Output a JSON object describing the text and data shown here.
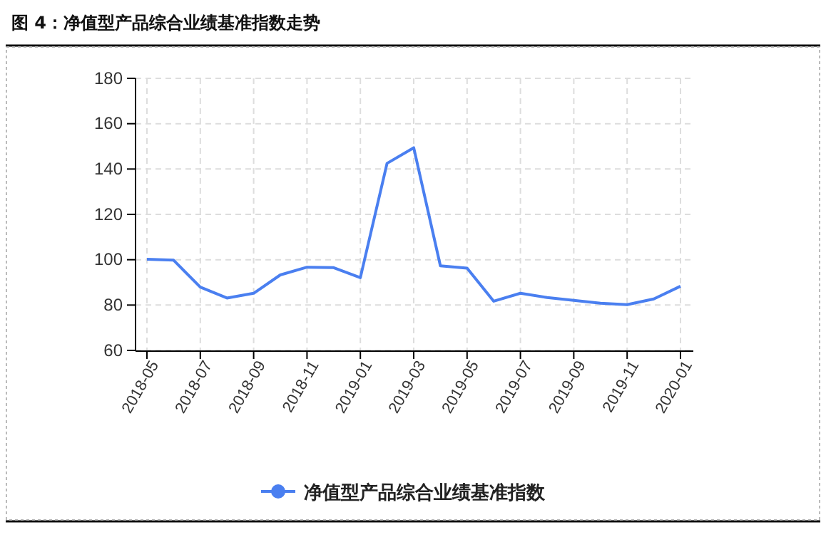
{
  "chart_data": {
    "type": "line",
    "title": "图 4：净值型产品综合业绩基准指数走势",
    "categories": [
      "2018-05",
      null,
      "2018-07",
      null,
      "2018-09",
      null,
      "2018-11",
      null,
      "2019-01",
      null,
      "2019-03",
      null,
      "2019-05",
      null,
      "2019-07",
      null,
      "2019-09",
      null,
      "2019-11",
      null,
      "2020-01"
    ],
    "series": [
      {
        "name": "净值型产品综合业绩基准指数",
        "color": "#4a7ff0",
        "values": [
          100.2,
          99.8,
          87.9,
          83.1,
          85.2,
          93.3,
          96.7,
          96.5,
          92.1,
          142.5,
          149.4,
          97.3,
          96.3,
          81.7,
          85.2,
          83.3,
          82.1,
          80.8,
          80.2,
          82.7,
          88.3
        ]
      }
    ],
    "ylim": [
      60,
      180
    ],
    "yticks": [
      60,
      80,
      100,
      120,
      140,
      160,
      180
    ],
    "grid": true,
    "legend": "bottom",
    "marker": "none",
    "line_style": "solid"
  }
}
